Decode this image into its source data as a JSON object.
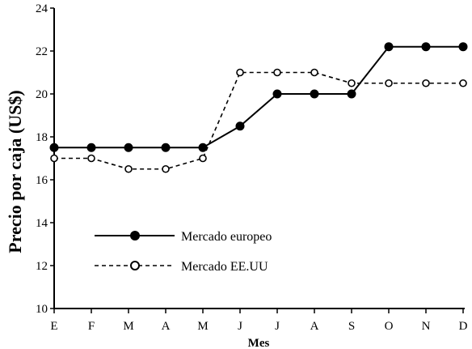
{
  "chart_data": {
    "type": "line",
    "title": "",
    "xlabel": "Mes",
    "ylabel": "Precio por caja  (US$)",
    "categories": [
      "E",
      "F",
      "M",
      "A",
      "M",
      "J",
      "J",
      "A",
      "S",
      "O",
      "N",
      "D"
    ],
    "ylim": [
      10,
      24
    ],
    "yticks": [
      10,
      12,
      14,
      16,
      18,
      20,
      22,
      24
    ],
    "grid": false,
    "legend_position": "center-left",
    "series": [
      {
        "name": "Mercado europeo",
        "style": "solid",
        "marker": "filled-circle",
        "values": [
          17.5,
          17.5,
          17.5,
          17.5,
          17.5,
          18.5,
          20.0,
          20.0,
          20.0,
          22.2,
          22.2,
          22.2
        ]
      },
      {
        "name": "Mercado EE.UU",
        "style": "dashed",
        "marker": "open-circle",
        "values": [
          17.0,
          17.0,
          16.5,
          16.5,
          17.0,
          21.0,
          21.0,
          21.0,
          20.5,
          20.5,
          20.5,
          20.5
        ]
      }
    ],
    "colors": {
      "line": "#000000",
      "background": "#ffffff"
    }
  }
}
